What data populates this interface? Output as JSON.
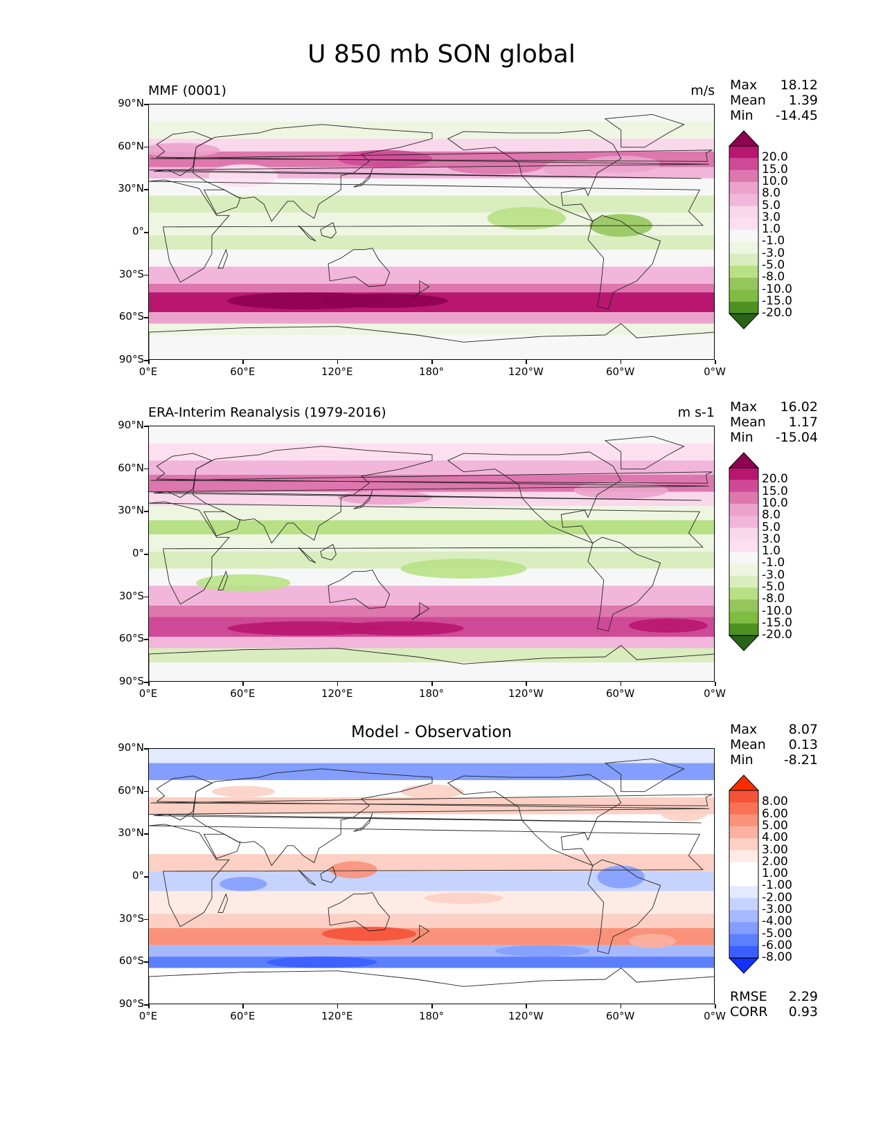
{
  "figure_title": "U 850 mb SON global",
  "x_ticks": [
    "0°E",
    "60°E",
    "120°E",
    "180°",
    "120°W",
    "60°W",
    "0°W"
  ],
  "y_ticks": [
    "90°N",
    "60°N",
    "30°N",
    "0°",
    "30°S",
    "60°S",
    "90°S"
  ],
  "panels": [
    {
      "left_title": "MMF (0001)",
      "right_title": "m/s",
      "center_title": "",
      "stats": [
        {
          "label": "Max",
          "value": "18.12"
        },
        {
          "label": "Mean",
          "value": "1.39"
        },
        {
          "label": "Min",
          "value": "-14.45"
        }
      ],
      "colorbar_labels": [
        "20.0",
        "15.0",
        "10.0",
        "8.0",
        "5.0",
        "3.0",
        "1.0",
        "-1.0",
        "-3.0",
        "-5.0",
        "-8.0",
        "-10.0",
        "-15.0",
        "-20.0"
      ],
      "colorbar_colors": [
        "#8e0152",
        "#b8166f",
        "#cf4a96",
        "#de77ae",
        "#eba3cc",
        "#f1b6da",
        "#f8d8ea",
        "#fde0ef",
        "#f7f7f7",
        "#eef6e2",
        "#d9edbf",
        "#b8e186",
        "#95c65c",
        "#7fbc41",
        "#4d9221",
        "#276419"
      ],
      "extra_stats": []
    },
    {
      "left_title": "ERA-Interim Reanalysis (1979-2016)",
      "right_title": "m s-1",
      "center_title": "",
      "stats": [
        {
          "label": "Max",
          "value": "16.02"
        },
        {
          "label": "Mean",
          "value": "1.17"
        },
        {
          "label": "Min",
          "value": "-15.04"
        }
      ],
      "colorbar_labels": [
        "20.0",
        "15.0",
        "10.0",
        "8.0",
        "5.0",
        "3.0",
        "1.0",
        "-1.0",
        "-3.0",
        "-5.0",
        "-8.0",
        "-10.0",
        "-15.0",
        "-20.0"
      ],
      "colorbar_colors": [
        "#8e0152",
        "#b8166f",
        "#cf4a96",
        "#de77ae",
        "#eba3cc",
        "#f1b6da",
        "#f8d8ea",
        "#fde0ef",
        "#f7f7f7",
        "#eef6e2",
        "#d9edbf",
        "#b8e186",
        "#95c65c",
        "#7fbc41",
        "#4d9221",
        "#276419"
      ],
      "extra_stats": []
    },
    {
      "left_title": "",
      "right_title": "",
      "center_title": "Model - Observation",
      "stats": [
        {
          "label": "Max",
          "value": "8.07"
        },
        {
          "label": "Mean",
          "value": "0.13"
        },
        {
          "label": "Min",
          "value": "-8.21"
        }
      ],
      "colorbar_labels": [
        "8.00",
        "6.00",
        "5.00",
        "4.00",
        "3.00",
        "2.00",
        "1.00",
        "-1.00",
        "-2.00",
        "-3.00",
        "-4.00",
        "-5.00",
        "-6.00",
        "-8.00"
      ],
      "colorbar_colors": [
        "#ff2a00",
        "#f5523a",
        "#f97255",
        "#fa917a",
        "#fbb1a0",
        "#fcd0c4",
        "#feebe5",
        "#ffffff",
        "#ffffff",
        "#e4eaff",
        "#c6d3ff",
        "#a6b9ff",
        "#839eff",
        "#5c7fff",
        "#3a5fff",
        "#1432ff"
      ],
      "extra_stats": [
        {
          "label": "RMSE",
          "value": "2.29"
        },
        {
          "label": "CORR",
          "value": "0.93"
        }
      ]
    }
  ]
}
